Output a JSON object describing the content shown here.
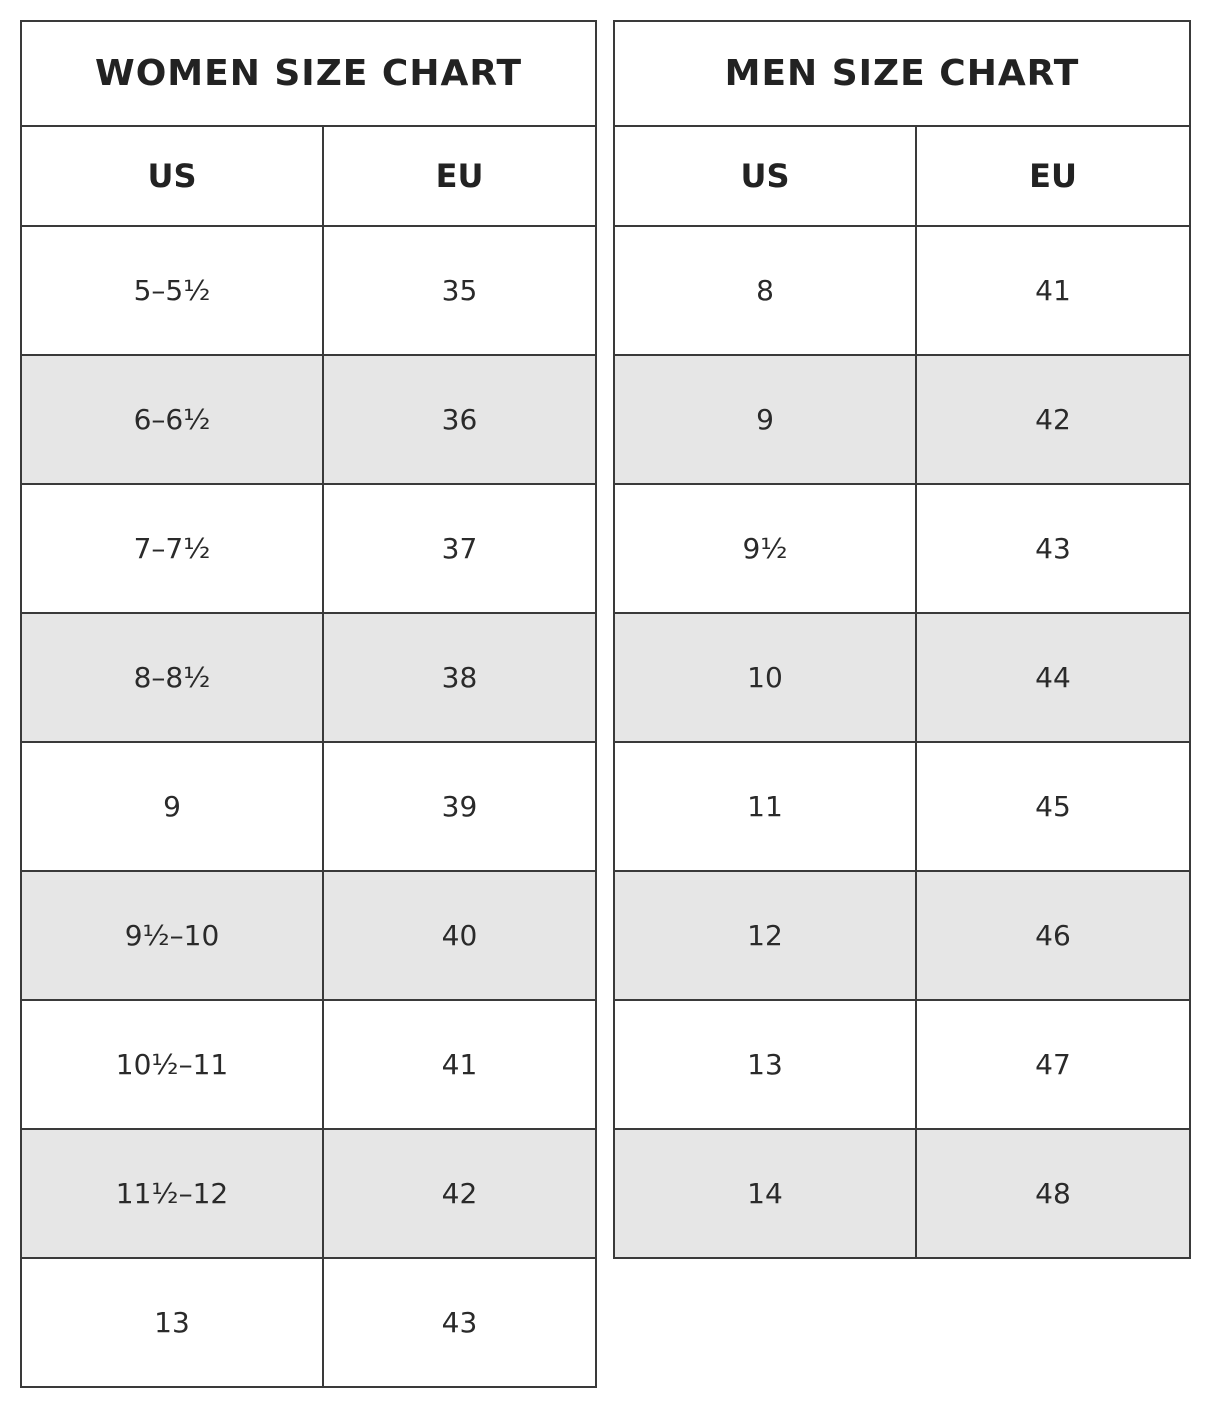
{
  "women": {
    "title": "WOMEN SIZE CHART",
    "columns": [
      "US",
      "EU"
    ],
    "rows": [
      [
        "5–5½",
        "35"
      ],
      [
        "6–6½",
        "36"
      ],
      [
        "7–7½",
        "37"
      ],
      [
        "8–8½",
        "38"
      ],
      [
        "9",
        "39"
      ],
      [
        "9½–10",
        "40"
      ],
      [
        "10½–11",
        "41"
      ],
      [
        "11½–12",
        "42"
      ],
      [
        "13",
        "43"
      ]
    ]
  },
  "men": {
    "title": "MEN SIZE CHART",
    "columns": [
      "US",
      "EU"
    ],
    "rows": [
      [
        "8",
        "41"
      ],
      [
        "9",
        "42"
      ],
      [
        "9½",
        "43"
      ],
      [
        "10",
        "44"
      ],
      [
        "11",
        "45"
      ],
      [
        "12",
        "46"
      ],
      [
        "13",
        "47"
      ],
      [
        "14",
        "48"
      ]
    ]
  },
  "colors": {
    "border": "#3a3a3a",
    "stripe": "#e6e6e6",
    "text": "#222222"
  }
}
